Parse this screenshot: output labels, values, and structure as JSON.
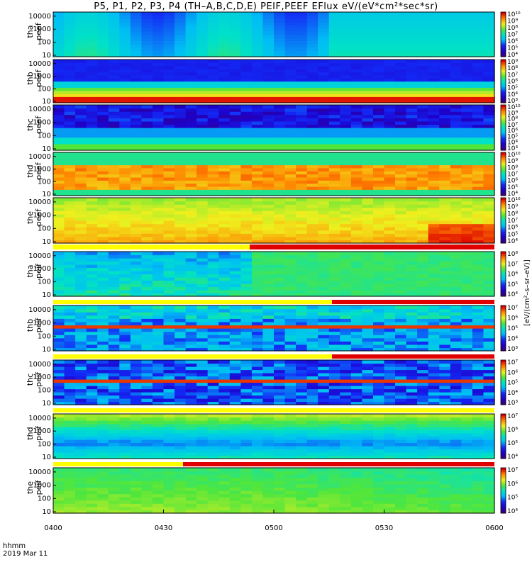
{
  "title": "P5, P1, P2, P3, P4 (TH–A,B,C,D,E) PEIF,PEEF EFlux eV/(eV*cm²*sec*sr)",
  "footer": {
    "line1": "hhmm",
    "line2": "2019 Mar 11"
  },
  "unit_label": "[eV/(cm²–s–sr–eV)]",
  "chart_data": {
    "type": "heatmap",
    "x_ticks": [
      "0400",
      "0430",
      "0500",
      "0530",
      "0600"
    ],
    "y_ticks": [
      "10",
      "100",
      "1000",
      "10000"
    ],
    "y_scale": "log",
    "colormap": "rainbow (purple-blue-cyan-green-yellow-red)",
    "panels": [
      {
        "label1": "tha",
        "label2": "peef",
        "cbar_ticks": [
          "10⁴",
          "10⁵",
          "10⁶",
          "10⁷",
          "10⁸",
          "10⁹",
          "10¹⁰"
        ]
      },
      {
        "label1": "thb",
        "label2": "peef",
        "cbar_ticks": [
          "10³",
          "10⁴",
          "10⁵",
          "10⁶",
          "10⁷",
          "10⁸",
          "10⁹"
        ]
      },
      {
        "label1": "thc",
        "label2": "peef",
        "cbar_ticks": [
          "10³",
          "10⁴",
          "10⁵",
          "10⁶",
          "10⁷",
          "10⁸",
          "10⁹",
          "10¹⁰"
        ]
      },
      {
        "label1": "thd",
        "label2": "peef",
        "cbar_ticks": [
          "10⁴",
          "10⁵",
          "10⁶",
          "10⁷",
          "10⁸",
          "10⁹",
          "10¹⁰"
        ]
      },
      {
        "label1": "the",
        "label2": "peef",
        "cbar_ticks": [
          "10⁴",
          "10⁵",
          "10⁶",
          "10⁷",
          "10⁸",
          "10⁹",
          "10¹⁰"
        ]
      },
      {
        "label1": "tha",
        "label2": "peif",
        "cbar_ticks": [
          "10⁴",
          "10⁵",
          "10⁶",
          "10⁷",
          "10⁸"
        ]
      },
      {
        "label1": "thb",
        "label2": "peif",
        "cbar_ticks": [
          "10³",
          "10⁴",
          "10⁵",
          "10⁶",
          "10⁷"
        ]
      },
      {
        "label1": "thc",
        "label2": "peif",
        "cbar_ticks": [
          "10³",
          "10⁴",
          "10⁵",
          "10⁶",
          "10⁷"
        ]
      },
      {
        "label1": "thd",
        "label2": "peif",
        "cbar_ticks": [
          "10⁴",
          "10⁵",
          "10⁶",
          "10⁷"
        ]
      },
      {
        "label1": "the",
        "label2": "peif",
        "cbar_ticks": [
          "10⁴",
          "10⁵",
          "10⁶",
          "10⁷"
        ]
      }
    ]
  }
}
